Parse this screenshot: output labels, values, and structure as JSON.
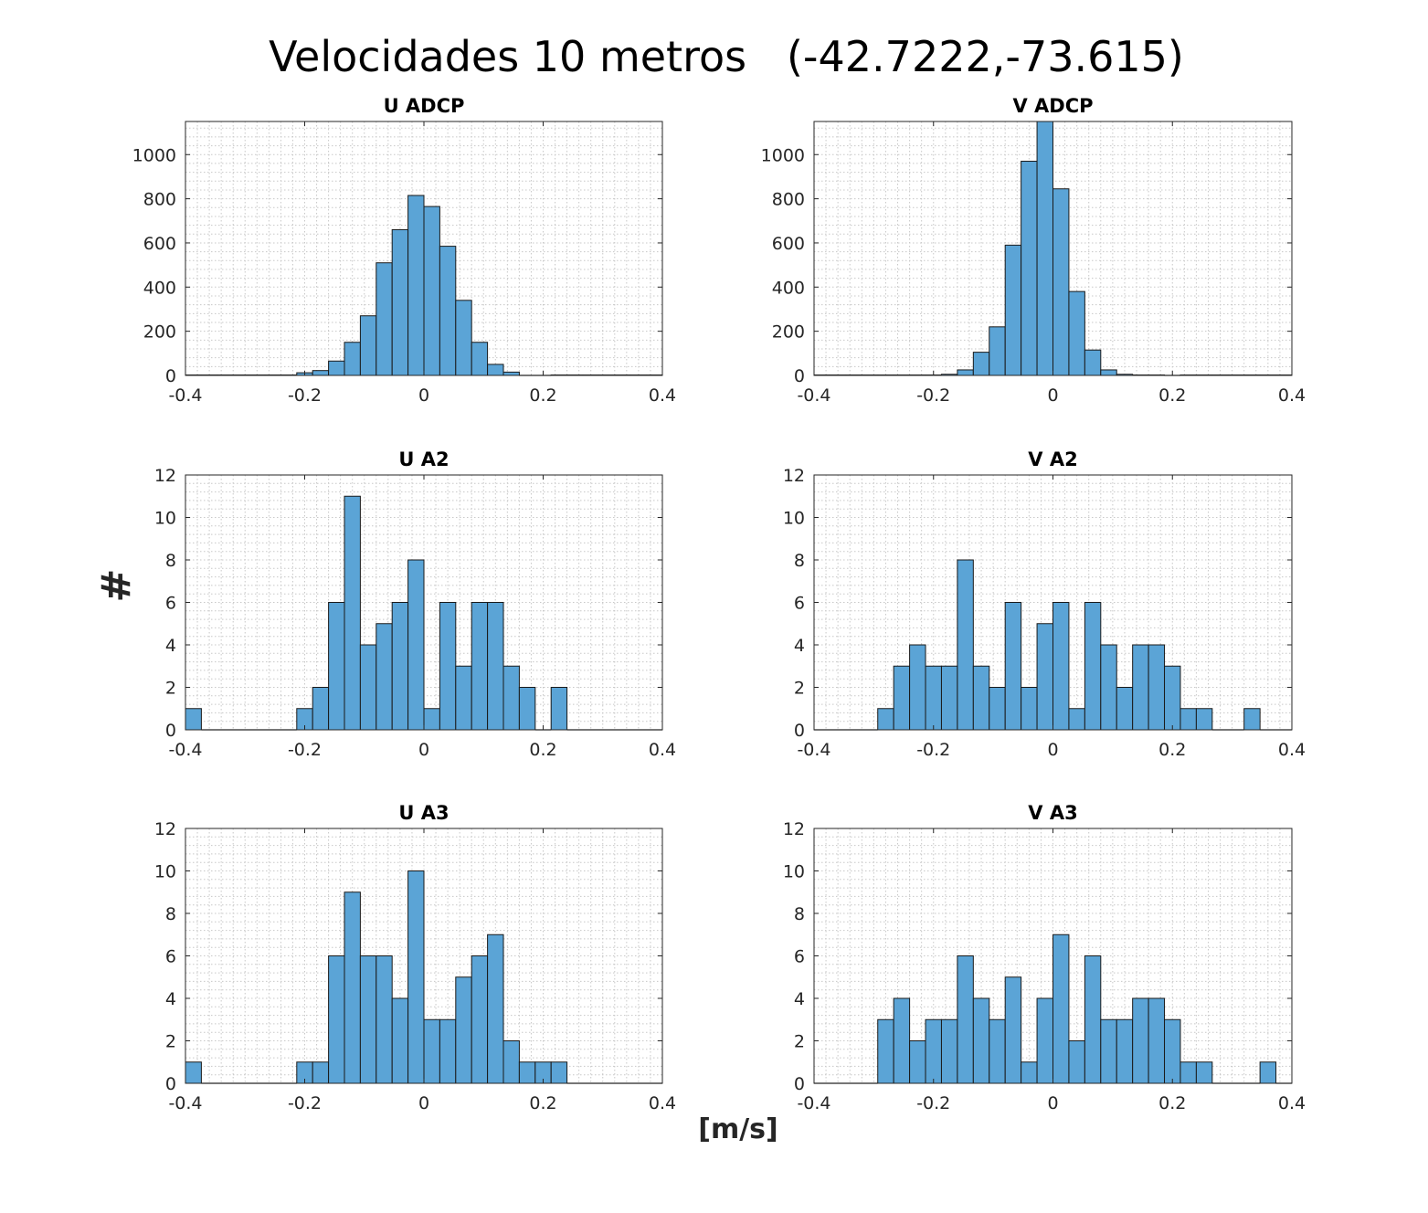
{
  "figure": {
    "title": "Velocidades 10 metros   (-42.7222,-73.615)",
    "ylabel": "#",
    "xlabel": "[m/s]"
  },
  "chart_data": [
    {
      "type": "bar",
      "title": "U ADCP",
      "xlim": [
        -0.4,
        0.4
      ],
      "ylim": [
        0,
        1150
      ],
      "xticks": [
        "-0.4",
        "-0.2",
        "0",
        "0.2",
        "0.4"
      ],
      "yticks": [
        "0",
        "200",
        "400",
        "600",
        "800",
        "1000"
      ],
      "grid": true,
      "bin_edges_start": -0.4,
      "bin_width": 0.0267,
      "values": [
        2,
        2,
        2,
        2,
        2,
        2,
        2,
        12,
        22,
        65,
        150,
        270,
        510,
        660,
        815,
        765,
        585,
        340,
        150,
        50,
        15,
        0,
        0,
        2,
        2,
        2,
        2,
        2,
        2,
        2
      ]
    },
    {
      "type": "bar",
      "title": "V ADCP",
      "xlim": [
        -0.4,
        0.4
      ],
      "ylim": [
        0,
        1150
      ],
      "xticks": [
        "-0.4",
        "-0.2",
        "0",
        "0.2",
        "0.4"
      ],
      "yticks": [
        "0",
        "200",
        "400",
        "600",
        "800",
        "1000"
      ],
      "grid": true,
      "bin_edges_start": -0.4,
      "bin_width": 0.0267,
      "values": [
        2,
        2,
        2,
        2,
        2,
        2,
        2,
        2,
        5,
        25,
        105,
        220,
        590,
        970,
        1150,
        845,
        380,
        115,
        25,
        5,
        2,
        2,
        0,
        2,
        2,
        2,
        2,
        2,
        2,
        2
      ]
    },
    {
      "type": "bar",
      "title": "U A2",
      "xlim": [
        -0.4,
        0.4
      ],
      "ylim": [
        0,
        12
      ],
      "xticks": [
        "-0.4",
        "-0.2",
        "0",
        "0.2",
        "0.4"
      ],
      "yticks": [
        "0",
        "2",
        "4",
        "6",
        "8",
        "10",
        "12"
      ],
      "grid": true,
      "bin_edges_start": -0.4,
      "bin_width": 0.0267,
      "values": [
        1,
        0,
        0,
        0,
        0,
        0,
        0,
        1,
        2,
        6,
        11,
        4,
        5,
        6,
        8,
        1,
        6,
        3,
        6,
        6,
        3,
        2,
        0,
        2,
        0,
        0,
        0,
        0,
        0,
        0
      ]
    },
    {
      "type": "bar",
      "title": "V A2",
      "xlim": [
        -0.4,
        0.4
      ],
      "ylim": [
        0,
        12
      ],
      "xticks": [
        "-0.4",
        "-0.2",
        "0",
        "0.2",
        "0.4"
      ],
      "yticks": [
        "0",
        "2",
        "4",
        "6",
        "8",
        "10",
        "12"
      ],
      "grid": true,
      "bin_edges_start": -0.4,
      "bin_width": 0.0267,
      "values": [
        0,
        0,
        0,
        0,
        1,
        3,
        4,
        3,
        3,
        8,
        3,
        2,
        6,
        2,
        5,
        6,
        1,
        6,
        4,
        2,
        4,
        4,
        3,
        1,
        1,
        0,
        0,
        1,
        0,
        0
      ]
    },
    {
      "type": "bar",
      "title": "U A3",
      "xlim": [
        -0.4,
        0.4
      ],
      "ylim": [
        0,
        12
      ],
      "xticks": [
        "-0.4",
        "-0.2",
        "0",
        "0.2",
        "0.4"
      ],
      "yticks": [
        "0",
        "2",
        "4",
        "6",
        "8",
        "10",
        "12"
      ],
      "grid": true,
      "bin_edges_start": -0.4,
      "bin_width": 0.0267,
      "values": [
        1,
        0,
        0,
        0,
        0,
        0,
        0,
        1,
        1,
        6,
        9,
        6,
        6,
        4,
        10,
        3,
        3,
        5,
        6,
        7,
        2,
        1,
        1,
        1,
        0,
        0,
        0,
        0,
        0,
        0
      ]
    },
    {
      "type": "bar",
      "title": "V A3",
      "xlim": [
        -0.4,
        0.4
      ],
      "ylim": [
        0,
        12
      ],
      "xticks": [
        "-0.4",
        "-0.2",
        "0",
        "0.2",
        "0.4"
      ],
      "yticks": [
        "0",
        "2",
        "4",
        "6",
        "8",
        "10",
        "12"
      ],
      "grid": true,
      "bin_edges_start": -0.4,
      "bin_width": 0.0267,
      "values": [
        0,
        0,
        0,
        0,
        3,
        4,
        2,
        3,
        3,
        6,
        4,
        3,
        5,
        1,
        4,
        7,
        2,
        6,
        3,
        3,
        4,
        4,
        3,
        1,
        1,
        0,
        0,
        0,
        1,
        0
      ]
    }
  ],
  "colors": {
    "bar_fill": "#5ba4d6",
    "bar_edge": "#1a1a1a",
    "axis": "#262626"
  }
}
